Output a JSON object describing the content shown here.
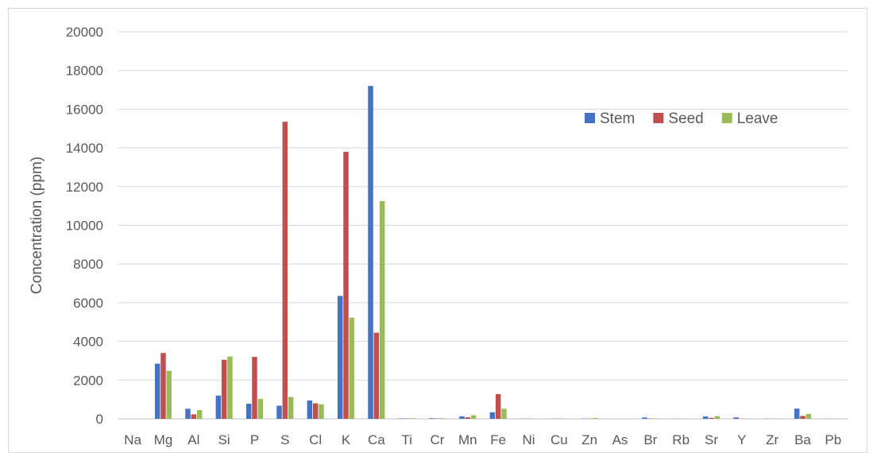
{
  "chart_data": {
    "type": "bar",
    "title": "",
    "xlabel": "",
    "ylabel": "Concentration (ppm)",
    "ylim": [
      0,
      20000
    ],
    "yticks": [
      0,
      2000,
      4000,
      6000,
      8000,
      10000,
      12000,
      14000,
      16000,
      18000,
      20000
    ],
    "grid": true,
    "legend_position": "upper-right-inside",
    "categories": [
      "Na",
      "Mg",
      "Al",
      "Si",
      "P",
      "S",
      "Cl",
      "K",
      "Ca",
      "Ti",
      "Cr",
      "Mn",
      "Fe",
      "Ni",
      "Cu",
      "Zn",
      "As",
      "Br",
      "Rb",
      "Sr",
      "Y",
      "Zr",
      "Ba",
      "Pb"
    ],
    "series": [
      {
        "name": "Stem",
        "color": "#4472c4",
        "values": [
          0,
          2850,
          520,
          1200,
          780,
          680,
          950,
          6350,
          17200,
          20,
          30,
          130,
          340,
          10,
          10,
          15,
          0,
          70,
          10,
          120,
          75,
          10,
          530,
          10
        ]
      },
      {
        "name": "Seed",
        "color": "#c0504d",
        "values": [
          0,
          3400,
          230,
          3050,
          3200,
          15350,
          800,
          13800,
          4450,
          15,
          20,
          80,
          1280,
          10,
          10,
          10,
          0,
          15,
          5,
          50,
          10,
          5,
          150,
          5
        ]
      },
      {
        "name": "Leave",
        "color": "#9bbb59",
        "values": [
          0,
          2480,
          450,
          3220,
          1030,
          1130,
          750,
          5230,
          11250,
          30,
          30,
          180,
          520,
          5,
          10,
          45,
          0,
          20,
          5,
          140,
          5,
          5,
          250,
          5
        ]
      }
    ]
  }
}
